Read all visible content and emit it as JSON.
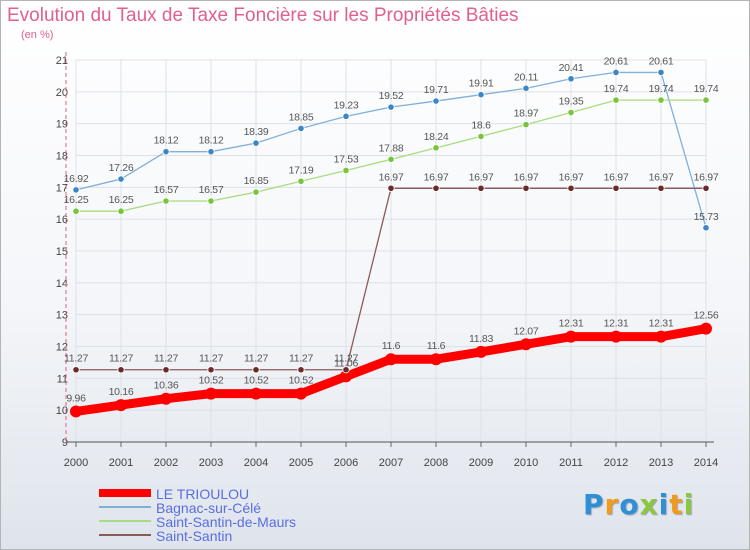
{
  "title": "Evolution du Taux de Taxe Foncière sur les Propriétés Bâties",
  "unit": "(en %)",
  "brand": {
    "letters": [
      "P",
      "r",
      "o",
      "x",
      "i",
      "t",
      "i"
    ],
    "colors": [
      "#2f8fd6",
      "#f29a1e",
      "#2f8fd6",
      "#8dc63f",
      "#2f8fd6",
      "#f29a1e",
      "#8dc63f"
    ]
  },
  "chart_data": {
    "type": "line",
    "title": "Evolution du Taux de Taxe Foncière sur les Propriétés Bâties",
    "ylabel": "(en %)",
    "xlabel": "",
    "ylim": [
      9,
      21
    ],
    "yticks": [
      "9",
      "10",
      "11",
      "12",
      "13",
      "14",
      "15",
      "16",
      "17",
      "18",
      "19",
      "20",
      "21"
    ],
    "x": [
      "2000",
      "2001",
      "2002",
      "2003",
      "2004",
      "2005",
      "2006",
      "2007",
      "2008",
      "2009",
      "2010",
      "2011",
      "2012",
      "2013",
      "2014"
    ],
    "grid": true,
    "legend_position": "bottom-left",
    "series": [
      {
        "name": "LE TRIOULOU",
        "color": "#ff0000",
        "marker_color": "#ff0000",
        "style": "thick",
        "values": [
          9.96,
          10.16,
          10.36,
          10.52,
          10.52,
          10.52,
          11.06,
          11.6,
          11.6,
          11.83,
          12.07,
          12.31,
          12.31,
          12.31,
          12.56
        ],
        "labels": [
          "9.96",
          "10.16",
          "10.36",
          "10.52",
          "10.52",
          "10.52",
          "11.06",
          "11.6",
          "11.6",
          "11.83",
          "12.07",
          "12.31",
          "12.31",
          "12.31",
          "12.56"
        ]
      },
      {
        "name": "Bagnac-sur-Célé",
        "color": "#7fb0dc",
        "marker_color": "#3d86c6",
        "style": "thin",
        "values": [
          16.92,
          17.26,
          18.12,
          18.12,
          18.39,
          18.85,
          19.23,
          19.52,
          19.71,
          19.91,
          20.11,
          20.41,
          20.61,
          20.61,
          15.73
        ],
        "labels": [
          "16.92",
          "17.26",
          "18.12",
          "18.12",
          "18.39",
          "18.85",
          "19.23",
          "19.52",
          "19.71",
          "19.91",
          "20.11",
          "20.41",
          "20.61",
          "20.61",
          "15.73"
        ]
      },
      {
        "name": "Saint-Santin-de-Maurs",
        "color": "#a8dc80",
        "marker_color": "#78c43a",
        "style": "thin",
        "values": [
          16.25,
          16.25,
          16.57,
          16.57,
          16.85,
          17.19,
          17.53,
          17.88,
          18.24,
          18.6,
          18.97,
          19.35,
          19.74,
          19.74,
          19.74
        ],
        "labels": [
          "16.25",
          "16.25",
          "16.57",
          "16.57",
          "16.85",
          "17.19",
          "17.53",
          "17.88",
          "18.24",
          "18.6",
          "18.97",
          "19.35",
          "19.74",
          "19.74",
          "19.74"
        ]
      },
      {
        "name": "Saint-Santin",
        "color": "#8a5a5a",
        "marker_color": "#6a2a2a",
        "style": "thin",
        "values": [
          11.27,
          11.27,
          11.27,
          11.27,
          11.27,
          11.27,
          11.27,
          16.97,
          16.97,
          16.97,
          16.97,
          16.97,
          16.97,
          16.97,
          16.97
        ],
        "labels": [
          "11.27",
          "11.27",
          "11.27",
          "11.27",
          "11.27",
          "11.27",
          "11.27",
          "16.97",
          "16.97",
          "16.97",
          "16.97",
          "16.97",
          "16.97",
          "16.97",
          "16.97"
        ]
      }
    ]
  }
}
